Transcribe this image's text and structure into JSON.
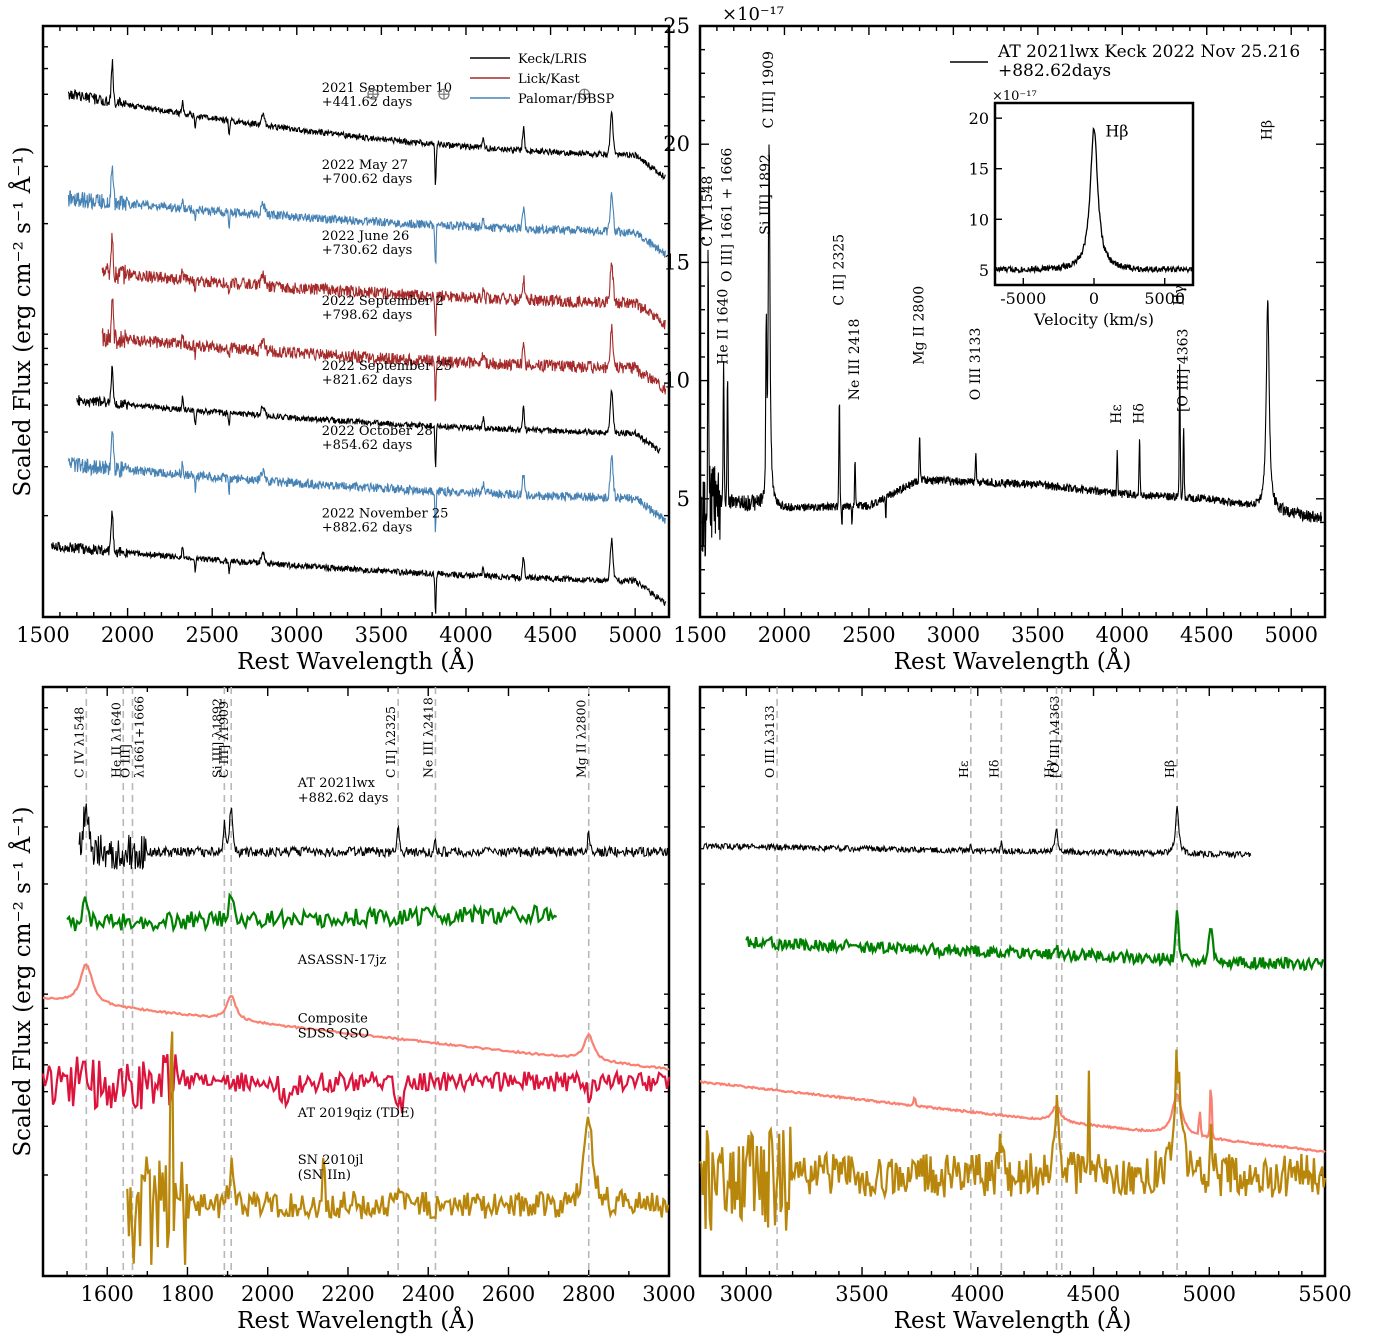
{
  "colors": {
    "keck": "#000000",
    "lick": "#a52a2a",
    "palomar": "#4682b4",
    "asassn": "#008000",
    "qso": "#fa8072",
    "tde": "#dc143c",
    "sn": "#b8860b",
    "guide": "#b0b0b0"
  },
  "chart_data": [
    {
      "id": "panel-a",
      "type": "line",
      "xlabel": "Rest Wavelength (Å)",
      "ylabel": "Scaled Flux (erg cm$^{-2}$ s$^{-1}$ Å$^{-1}$)",
      "ylabel_text": "Scaled Flux (erg cm⁻² s⁻¹ Å⁻¹)",
      "xlim": [
        1500,
        5200
      ],
      "xticks": [
        1500,
        2000,
        2500,
        3000,
        3500,
        4000,
        4500,
        5000
      ],
      "ylim": [
        0,
        1
      ],
      "legend": [
        {
          "label": "Keck/LRIS",
          "color_key": "keck"
        },
        {
          "label": "Lick/Kast",
          "color_key": "lick"
        },
        {
          "label": "Palomar/DBSP",
          "color_key": "palomar"
        }
      ],
      "telluric_markers": [
        3450,
        3870,
        4700
      ],
      "series": [
        {
          "label1": "2021 September 10",
          "label2": "+441.62 days",
          "instrument": "keck",
          "x_start": 1650,
          "x_end": 5180,
          "level": 0.8,
          "label_x": 3100
        },
        {
          "label1": "2022 May 27",
          "label2": "+700.62 days",
          "instrument": "palomar",
          "x_start": 1650,
          "x_end": 5180,
          "level": 0.67,
          "label_x": 3100
        },
        {
          "label1": "2022 June 26",
          "label2": "+730.62 days",
          "instrument": "lick",
          "x_start": 1850,
          "x_end": 5180,
          "level": 0.55,
          "label_x": 3100
        },
        {
          "label1": "2022 September 2",
          "label2": "+798.62 days",
          "instrument": "lick",
          "x_start": 1850,
          "x_end": 5180,
          "level": 0.44,
          "label_x": 3100
        },
        {
          "label1": "2022 September 25",
          "label2": "+821.62 days",
          "instrument": "keck",
          "x_start": 1700,
          "x_end": 5150,
          "level": 0.33,
          "label_x": 3100
        },
        {
          "label1": "2022 October 28",
          "label2": "+854.62 days",
          "instrument": "palomar",
          "x_start": 1650,
          "x_end": 5180,
          "level": 0.22,
          "label_x": 3100
        },
        {
          "label1": "2022 November 25",
          "label2": "+882.62 days",
          "instrument": "keck",
          "x_start": 1550,
          "x_end": 5180,
          "level": 0.08,
          "label_x": 3100
        }
      ]
    },
    {
      "id": "panel-b",
      "type": "line",
      "xlabel": "Rest Wavelength (Å)",
      "xlim": [
        1500,
        5200
      ],
      "xticks": [
        1500,
        2000,
        2500,
        3000,
        3500,
        4000,
        4500,
        5000
      ],
      "ylim": [
        0,
        25
      ],
      "yticks": [
        5,
        10,
        15,
        20,
        25
      ],
      "yscale_label": "×10$^{-17}$",
      "yscale_text": "×10⁻¹⁷",
      "legend": [
        {
          "label": "AT 2021lwx Keck 2022 Nov 25.216",
          "label2": "+882.62days",
          "color_key": "keck"
        }
      ],
      "series": [
        {
          "name": "AT 2021lwx Keck 2022 Nov 25.216",
          "continuum": [
            [
              1550,
              5.0
            ],
            [
              2000,
              4.6
            ],
            [
              2500,
              4.7
            ],
            [
              2800,
              5.8
            ],
            [
              3500,
              5.6
            ],
            [
              4000,
              5.2
            ],
            [
              4500,
              5.0
            ],
            [
              5150,
              4.2
            ]
          ]
        }
      ],
      "lines": [
        {
          "label": "C IV 1548",
          "x": 1548,
          "peak": 15.5,
          "label_y": 15.5
        },
        {
          "label": "He II 1640",
          "x": 1640,
          "peak": 10.5,
          "label_y": 10.5
        },
        {
          "label": "O III] 1661 + 1666",
          "x": 1663,
          "peak": 10.3,
          "label_y": 14.0
        },
        {
          "label": "Si III] 1892",
          "x": 1892,
          "peak": 11.4,
          "label_y": 16.0
        },
        {
          "label": "C III] 1909",
          "x": 1909,
          "peak": 20.2,
          "label_y": 20.5
        },
        {
          "label": "C II] 2325",
          "x": 2325,
          "peak": 9.3,
          "label_y": 13.0
        },
        {
          "label": "Ne III 2418",
          "x": 2418,
          "peak": 6.6,
          "label_y": 9.0
        },
        {
          "label": "Mg II 2800",
          "x": 2800,
          "peak": 7.8,
          "label_y": 10.5
        },
        {
          "label": "O III 3133",
          "x": 3133,
          "peak": 7.0,
          "label_y": 9.0
        },
        {
          "label": "Hε",
          "x": 3970,
          "peak": 7.0,
          "label_y": 8.0
        },
        {
          "label": "Hδ",
          "x": 4102,
          "peak": 7.7,
          "label_y": 8.0
        },
        {
          "label": "Hγ",
          "x": 4340,
          "peak": 10.8,
          "label_y": 13.0
        },
        {
          "label": "[O III] 4363",
          "x": 4363,
          "peak": 8.0,
          "label_y": 8.5
        },
        {
          "label": "Hβ",
          "x": 4861,
          "peak": 13.5,
          "label_y": 20.0
        }
      ],
      "inset": {
        "xlabel": "Velocity (km/s)",
        "xlim": [
          -7000,
          7000
        ],
        "xticks": [
          -5000,
          0,
          5000
        ],
        "ylim": [
          3.5,
          21.5
        ],
        "yticks": [
          5,
          10,
          15,
          20
        ],
        "yscale_text": "×10⁻¹⁷",
        "annotation": "Hβ",
        "peak": 19.0,
        "baseline": 5.0
      }
    },
    {
      "id": "panel-c",
      "type": "line",
      "xlabel": "Rest Wavelength (Å)",
      "ylabel_text": "Scaled Flux (erg cm⁻² s⁻¹ Å⁻¹)",
      "xlim": [
        1440,
        3000
      ],
      "xticks": [
        1600,
        1800,
        2000,
        2200,
        2400,
        2600,
        2800,
        3000
      ],
      "ylim": [
        0,
        1
      ],
      "guides": [
        {
          "label": "C IV λ1548",
          "x": 1548
        },
        {
          "label": "He II λ1640",
          "x": 1640
        },
        {
          "label": "O III]",
          "label2": "λ1661+1666",
          "x": 1663
        },
        {
          "label": "Si III] λ1892",
          "x": 1892
        },
        {
          "label": "C III] λ1909",
          "x": 1909
        },
        {
          "label": "C II] λ2325",
          "x": 2325
        },
        {
          "label": "Ne III λ2418",
          "x": 2418
        },
        {
          "label": "Mg II λ2800",
          "x": 2800
        }
      ],
      "series": [
        {
          "label1": "AT 2021lwx",
          "label2": "+882.62 days",
          "color_key": "keck",
          "x_start": 1530,
          "x_end": 3000,
          "level": 0.72,
          "label_x": 2060,
          "label_level": 0.83
        },
        {
          "label1": "ASASSN-17jz",
          "label2": "",
          "color_key": "asassn",
          "x_start": 1500,
          "x_end": 2720,
          "level": 0.6,
          "label_x": 2060,
          "label_level": 0.53
        },
        {
          "label1": "Composite",
          "label2": "SDSS QSO",
          "color_key": "qso",
          "x_start": 1440,
          "x_end": 3000,
          "level": 0.47,
          "label_x": 2060,
          "label_level": 0.43
        },
        {
          "label1": "AT 2019qiz (TDE)",
          "label2": "",
          "color_key": "tde",
          "x_start": 1440,
          "x_end": 3000,
          "level": 0.33,
          "label_x": 2060,
          "label_level": 0.27
        },
        {
          "label1": "SN 2010jl",
          "label2": "(SN IIn)",
          "color_key": "sn",
          "x_start": 1650,
          "x_end": 3000,
          "level": 0.12,
          "label_x": 2060,
          "label_level": 0.19
        }
      ]
    },
    {
      "id": "panel-d",
      "type": "line",
      "xlabel": "Rest Wavelength (Å)",
      "xlim": [
        2800,
        5500
      ],
      "xticks": [
        3000,
        3500,
        4000,
        4500,
        5000,
        5500
      ],
      "ylim": [
        0,
        1
      ],
      "guides": [
        {
          "label": "O III λ3133",
          "x": 3133
        },
        {
          "label": "Hε",
          "x": 3970
        },
        {
          "label": "Hδ",
          "x": 4102
        },
        {
          "label": "Hγ",
          "x": 4340
        },
        {
          "label": "[O III] λ4363",
          "x": 4363
        },
        {
          "label": "Hβ",
          "x": 4861
        }
      ],
      "series": [
        {
          "color_key": "keck",
          "x_start": 2800,
          "x_end": 5180,
          "level": 0.73
        },
        {
          "color_key": "asassn",
          "x_start": 3000,
          "x_end": 5500,
          "level": 0.57
        },
        {
          "color_key": "qso",
          "x_start": 2800,
          "x_end": 5500,
          "level": 0.33
        },
        {
          "color_key": "sn",
          "x_start": 2800,
          "x_end": 5500,
          "level": 0.17
        }
      ]
    }
  ]
}
